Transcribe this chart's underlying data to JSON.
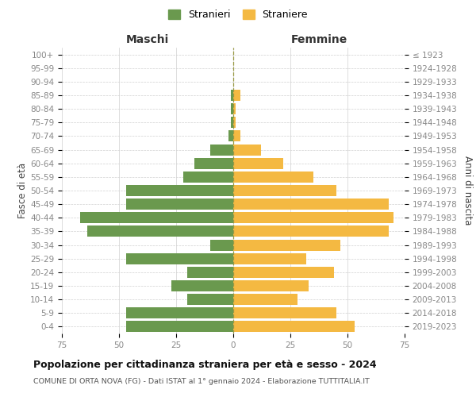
{
  "age_groups": [
    "100+",
    "95-99",
    "90-94",
    "85-89",
    "80-84",
    "75-79",
    "70-74",
    "65-69",
    "60-64",
    "55-59",
    "50-54",
    "45-49",
    "40-44",
    "35-39",
    "30-34",
    "25-29",
    "20-24",
    "15-19",
    "10-14",
    "5-9",
    "0-4"
  ],
  "birth_years": [
    "≤ 1923",
    "1924-1928",
    "1929-1933",
    "1934-1938",
    "1939-1943",
    "1944-1948",
    "1949-1953",
    "1954-1958",
    "1959-1963",
    "1964-1968",
    "1969-1973",
    "1974-1978",
    "1979-1983",
    "1984-1988",
    "1989-1993",
    "1994-1998",
    "1999-2003",
    "2004-2008",
    "2009-2013",
    "2014-2018",
    "2019-2023"
  ],
  "maschi": [
    0,
    0,
    0,
    1,
    1,
    1,
    2,
    10,
    17,
    22,
    47,
    47,
    67,
    64,
    10,
    47,
    20,
    27,
    20,
    47,
    47
  ],
  "femmine": [
    0,
    0,
    0,
    3,
    1,
    1,
    3,
    12,
    22,
    35,
    45,
    68,
    70,
    68,
    47,
    32,
    44,
    33,
    28,
    45,
    53
  ],
  "male_color": "#6a994e",
  "female_color": "#f4b942",
  "xlim": 75,
  "title_main": "Popolazione per cittadinanza straniera per età e sesso - 2024",
  "title_sub": "COMUNE DI ORTA NOVA (FG) - Dati ISTAT al 1° gennaio 2024 - Elaborazione TUTTITALIA.IT",
  "ylabel_left": "Fasce di età",
  "ylabel_right": "Anni di nascita",
  "header_left": "Maschi",
  "header_right": "Femmine",
  "legend_male": "Stranieri",
  "legend_female": "Straniere",
  "bg_color": "#ffffff",
  "grid_color": "#d0d0d0",
  "tick_color": "#888888",
  "bar_height": 0.82
}
